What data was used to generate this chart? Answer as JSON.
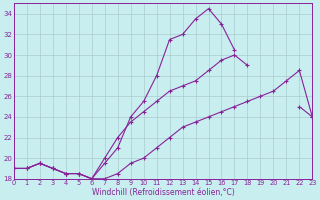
{
  "background_color": "#c8eef0",
  "grid_color": "#aacdd0",
  "line_color": "#882299",
  "xlabel": "Windchill (Refroidissement éolien,°C)",
  "xlim": [
    0,
    23
  ],
  "ylim": [
    18,
    35
  ],
  "yticks": [
    18,
    20,
    22,
    24,
    26,
    28,
    30,
    32,
    34
  ],
  "xticks": [
    0,
    1,
    2,
    3,
    4,
    5,
    6,
    7,
    8,
    9,
    10,
    11,
    12,
    13,
    14,
    15,
    16,
    17,
    18,
    19,
    20,
    21,
    22,
    23
  ],
  "line1_x": [
    0,
    1,
    2,
    3,
    4,
    5,
    6,
    7,
    8,
    9,
    10,
    11,
    12,
    13,
    14,
    15,
    16,
    17,
    18,
    19,
    20,
    21,
    22,
    23
  ],
  "line1_y": [
    19.0,
    19.0,
    19.5,
    19.0,
    18.5,
    18.5,
    18.0,
    18.0,
    18.5,
    19.5,
    20.0,
    21.0,
    22.0,
    23.0,
    23.5,
    24.0,
    24.5,
    25.0,
    25.5,
    26.0,
    26.5,
    27.5,
    28.5,
    24.0
  ],
  "line2_x": [
    0,
    1,
    2,
    3,
    4,
    5,
    6,
    7,
    8,
    9,
    10,
    11,
    12,
    13,
    14,
    15,
    16,
    17
  ],
  "line2_y": [
    19.0,
    19.0,
    19.5,
    19.0,
    18.5,
    18.5,
    18.0,
    19.5,
    21.0,
    24.0,
    25.5,
    28.0,
    31.5,
    32.0,
    33.5,
    34.5,
    33.0,
    30.5
  ],
  "line3_x": [
    0,
    1,
    2,
    3,
    4,
    5,
    6,
    7,
    8,
    9,
    10,
    11,
    12,
    13,
    14,
    15,
    16,
    17,
    18,
    19,
    20,
    21,
    22,
    23
  ],
  "line3_y": [
    19.0,
    19.0,
    19.5,
    19.0,
    18.5,
    18.5,
    18.0,
    20.0,
    22.0,
    23.5,
    24.5,
    25.5,
    26.5,
    27.0,
    27.5,
    28.5,
    29.5,
    30.0,
    29.0,
    null,
    null,
    null,
    25.0,
    24.0
  ]
}
